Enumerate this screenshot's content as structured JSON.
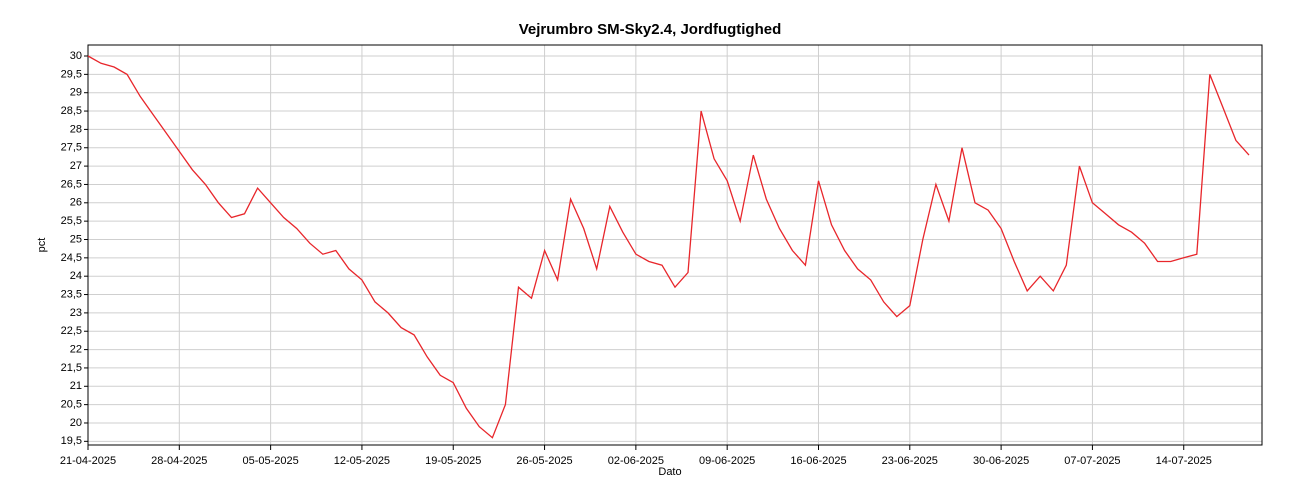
{
  "chart_data": {
    "type": "line",
    "title": "Vejrumbro SM-Sky2.4, Jordfugtighed",
    "x_label": "Dato",
    "y_label": "pct",
    "x": [
      "21-04-2025",
      "22-04-2025",
      "23-04-2025",
      "24-04-2025",
      "25-04-2025",
      "26-04-2025",
      "27-04-2025",
      "28-04-2025",
      "29-04-2025",
      "30-04-2025",
      "01-05-2025",
      "02-05-2025",
      "03-05-2025",
      "04-05-2025",
      "05-05-2025",
      "06-05-2025",
      "07-05-2025",
      "08-05-2025",
      "09-05-2025",
      "10-05-2025",
      "11-05-2025",
      "12-05-2025",
      "13-05-2025",
      "14-05-2025",
      "15-05-2025",
      "16-05-2025",
      "17-05-2025",
      "18-05-2025",
      "19-05-2025",
      "20-05-2025",
      "21-05-2025",
      "22-05-2025",
      "23-05-2025",
      "24-05-2025",
      "25-05-2025",
      "26-05-2025",
      "27-05-2025",
      "28-05-2025",
      "29-05-2025",
      "30-05-2025",
      "31-05-2025",
      "01-06-2025",
      "02-06-2025",
      "03-06-2025",
      "04-06-2025",
      "05-06-2025",
      "06-06-2025",
      "07-06-2025",
      "08-06-2025",
      "09-06-2025",
      "10-06-2025",
      "11-06-2025",
      "12-06-2025",
      "13-06-2025",
      "14-06-2025",
      "15-06-2025",
      "16-06-2025",
      "17-06-2025",
      "18-06-2025",
      "19-06-2025",
      "20-06-2025",
      "21-06-2025",
      "22-06-2025",
      "23-06-2025",
      "24-06-2025",
      "25-06-2025",
      "26-06-2025",
      "27-06-2025",
      "28-06-2025",
      "29-06-2025",
      "30-06-2025",
      "01-07-2025",
      "02-07-2025",
      "03-07-2025",
      "04-07-2025",
      "05-07-2025",
      "06-07-2025",
      "07-07-2025",
      "08-07-2025",
      "09-07-2025",
      "10-07-2025",
      "11-07-2025",
      "12-07-2025",
      "13-07-2025",
      "14-07-2025",
      "15-07-2025",
      "16-07-2025",
      "17-07-2025",
      "18-07-2025",
      "19-07-2025"
    ],
    "series": [
      {
        "name": "Jordfugtighed",
        "color": "#e8262b",
        "values": [
          30.0,
          29.8,
          29.7,
          29.5,
          28.9,
          28.4,
          27.9,
          27.4,
          26.9,
          26.5,
          26.0,
          25.6,
          25.7,
          26.4,
          26.0,
          25.6,
          25.3,
          24.9,
          24.6,
          24.7,
          24.2,
          23.9,
          23.3,
          23.0,
          22.6,
          22.4,
          21.8,
          21.3,
          21.1,
          20.4,
          19.9,
          19.6,
          20.5,
          23.7,
          23.4,
          24.7,
          23.9,
          26.1,
          25.3,
          24.2,
          25.9,
          25.2,
          24.6,
          24.4,
          24.3,
          23.7,
          24.1,
          28.5,
          27.2,
          26.6,
          25.5,
          27.3,
          26.1,
          25.3,
          24.7,
          24.3,
          26.6,
          25.4,
          24.7,
          24.2,
          23.9,
          23.3,
          22.9,
          23.2,
          25.0,
          26.5,
          25.5,
          27.5,
          26.0,
          25.8,
          25.3,
          24.4,
          23.6,
          24.0,
          23.6,
          24.3,
          27.0,
          26.0,
          25.7,
          25.4,
          25.2,
          24.9,
          24.4,
          24.4,
          24.5,
          24.6,
          29.5,
          28.6,
          27.7,
          27.3
        ]
      }
    ],
    "xlim": [
      "21-04-2025",
      "20-07-2025"
    ],
    "xticks": [
      "21-04-2025",
      "28-04-2025",
      "05-05-2025",
      "12-05-2025",
      "19-05-2025",
      "26-05-2025",
      "02-06-2025",
      "09-06-2025",
      "16-06-2025",
      "23-06-2025",
      "30-06-2025",
      "07-07-2025",
      "14-07-2025"
    ],
    "ylim": [
      19.4,
      30.3
    ],
    "yticks": [
      {
        "value": 19.5,
        "label": "19,5"
      },
      20,
      {
        "value": 20.5,
        "label": "20,5"
      },
      21,
      {
        "value": 21.5,
        "label": "21,5"
      },
      22,
      {
        "value": 22.5,
        "label": "22,5"
      },
      23,
      {
        "value": 23.5,
        "label": "23,5"
      },
      24,
      {
        "value": 24.5,
        "label": "24,5"
      },
      25,
      {
        "value": 25.5,
        "label": "25,5"
      },
      26,
      {
        "value": 26.5,
        "label": "26,5"
      },
      27,
      {
        "value": 27.5,
        "label": "27,5"
      },
      28,
      {
        "value": 28.5,
        "label": "28,5"
      },
      29,
      {
        "value": 29.5,
        "label": "29,5"
      },
      30
    ],
    "grid": true
  }
}
